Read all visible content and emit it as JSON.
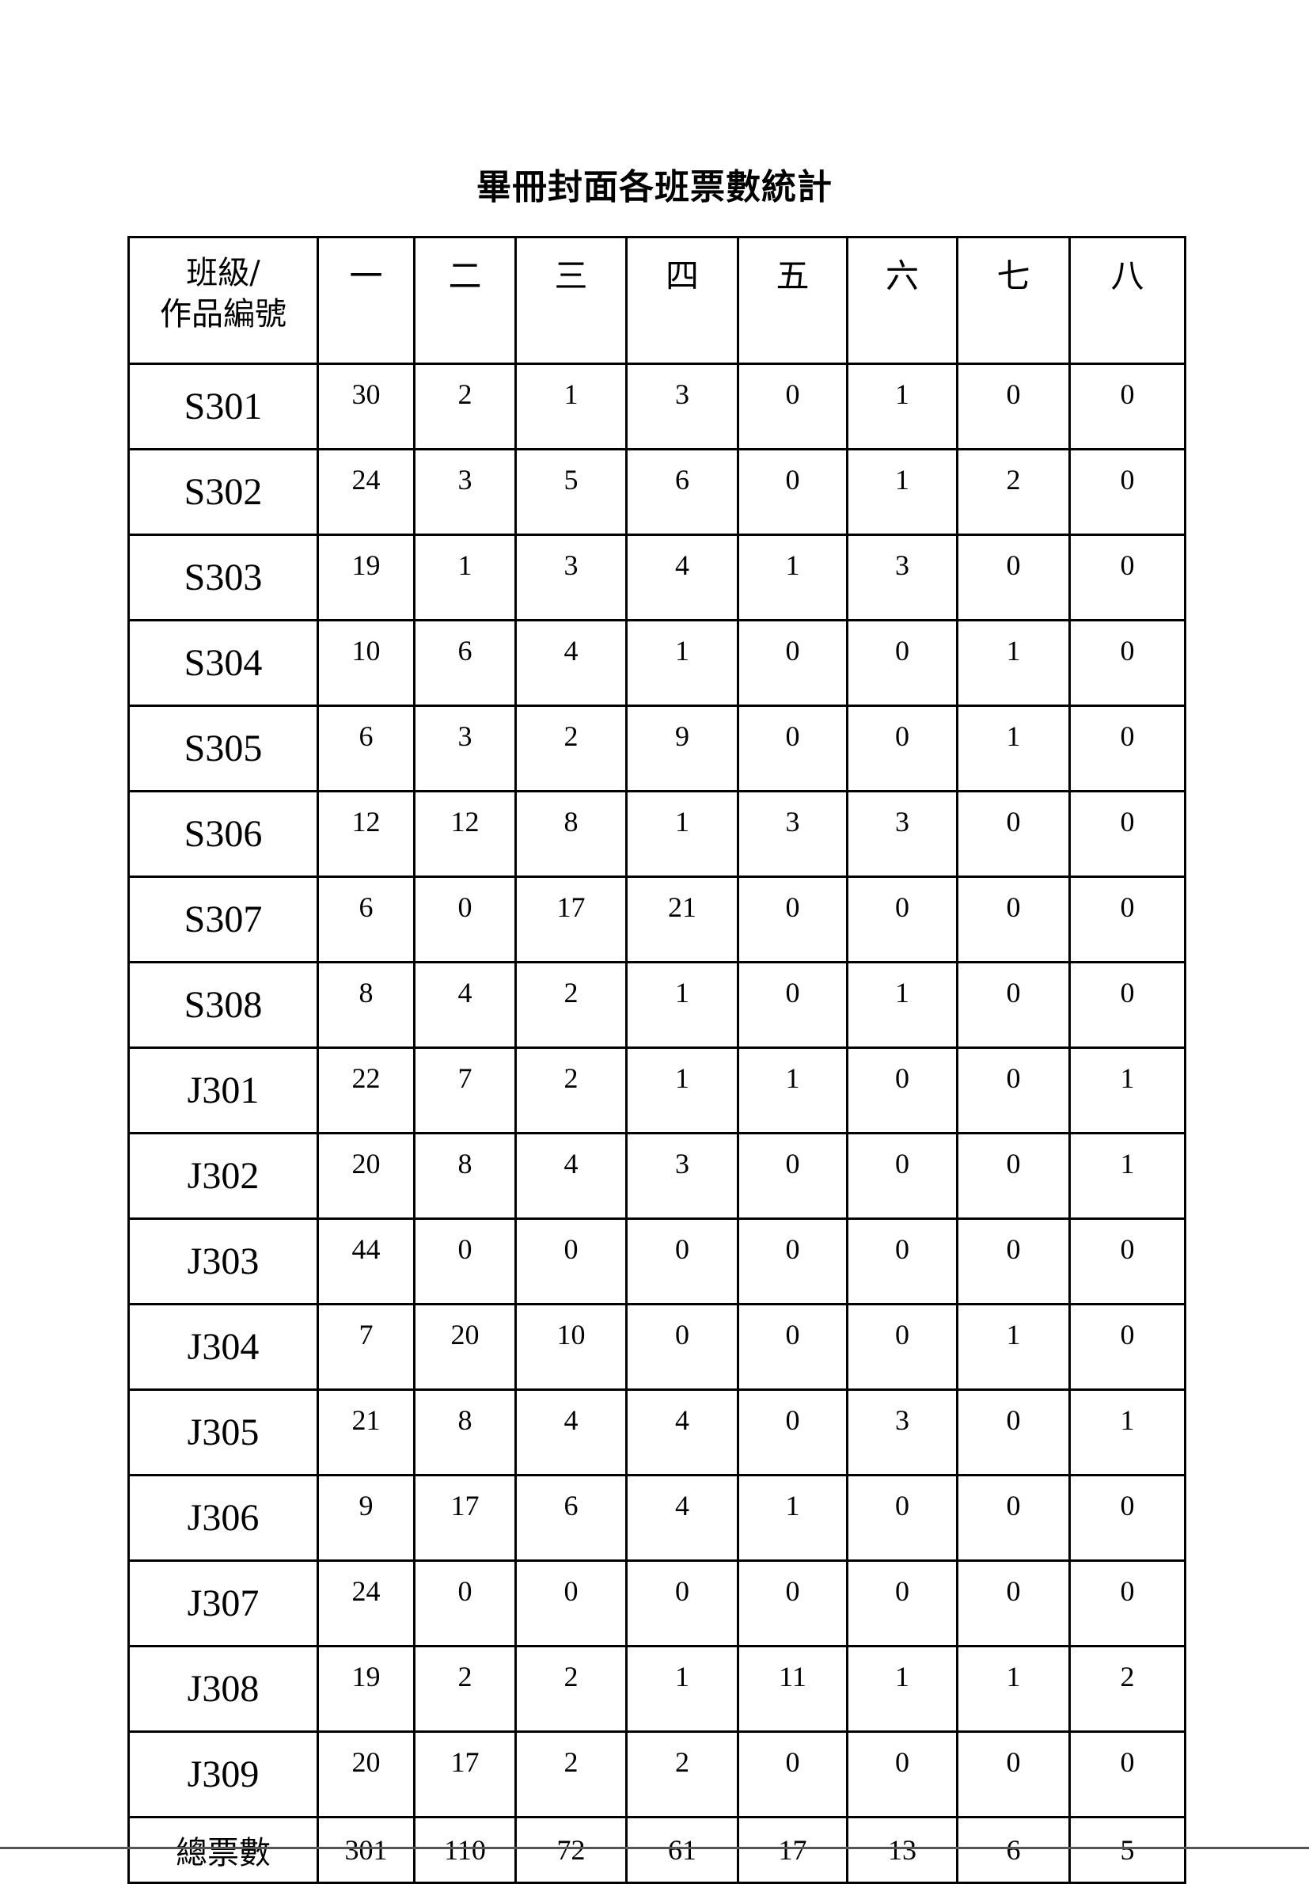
{
  "title": "畢冊封面各班票數統計",
  "table": {
    "corner_header": [
      "班級/",
      "作品編號"
    ],
    "columns": [
      "一",
      "二",
      "三",
      "四",
      "五",
      "六",
      "七",
      "八"
    ],
    "rows": [
      {
        "id": "S301",
        "values": [
          "30",
          "2",
          "1",
          "3",
          "0",
          "1",
          "0",
          "0"
        ]
      },
      {
        "id": "S302",
        "values": [
          "24",
          "3",
          "5",
          "6",
          "0",
          "1",
          "2",
          "0"
        ]
      },
      {
        "id": "S303",
        "values": [
          "19",
          "1",
          "3",
          "4",
          "1",
          "3",
          "0",
          "0"
        ]
      },
      {
        "id": "S304",
        "values": [
          "10",
          "6",
          "4",
          "1",
          "0",
          "0",
          "1",
          "0"
        ]
      },
      {
        "id": "S305",
        "values": [
          "6",
          "3",
          "2",
          "9",
          "0",
          "0",
          "1",
          "0"
        ]
      },
      {
        "id": "S306",
        "values": [
          "12",
          "12",
          "8",
          "1",
          "3",
          "3",
          "0",
          "0"
        ]
      },
      {
        "id": "S307",
        "values": [
          "6",
          "0",
          "17",
          "21",
          "0",
          "0",
          "0",
          "0"
        ]
      },
      {
        "id": "S308",
        "values": [
          "8",
          "4",
          "2",
          "1",
          "0",
          "1",
          "0",
          "0"
        ]
      },
      {
        "id": "J301",
        "values": [
          "22",
          "7",
          "2",
          "1",
          "1",
          "0",
          "0",
          "1"
        ]
      },
      {
        "id": "J302",
        "values": [
          "20",
          "8",
          "4",
          "3",
          "0",
          "0",
          "0",
          "1"
        ]
      },
      {
        "id": "J303",
        "values": [
          "44",
          "0",
          "0",
          "0",
          "0",
          "0",
          "0",
          "0"
        ]
      },
      {
        "id": "J304",
        "values": [
          "7",
          "20",
          "10",
          "0",
          "0",
          "0",
          "1",
          "0"
        ]
      },
      {
        "id": "J305",
        "values": [
          "21",
          "8",
          "4",
          "4",
          "0",
          "3",
          "0",
          "1"
        ]
      },
      {
        "id": "J306",
        "values": [
          "9",
          "17",
          "6",
          "4",
          "1",
          "0",
          "0",
          "0"
        ]
      },
      {
        "id": "J307",
        "values": [
          "24",
          "0",
          "0",
          "0",
          "0",
          "0",
          "0",
          "0"
        ]
      },
      {
        "id": "J308",
        "values": [
          "19",
          "2",
          "2",
          "1",
          "11",
          "1",
          "1",
          "2"
        ]
      },
      {
        "id": "J309",
        "values": [
          "20",
          "17",
          "2",
          "2",
          "0",
          "0",
          "0",
          "0"
        ]
      }
    ],
    "total": {
      "label": "總票數",
      "values": [
        "301",
        "110",
        "72",
        "61",
        "17",
        "13",
        "6",
        "5"
      ]
    }
  }
}
